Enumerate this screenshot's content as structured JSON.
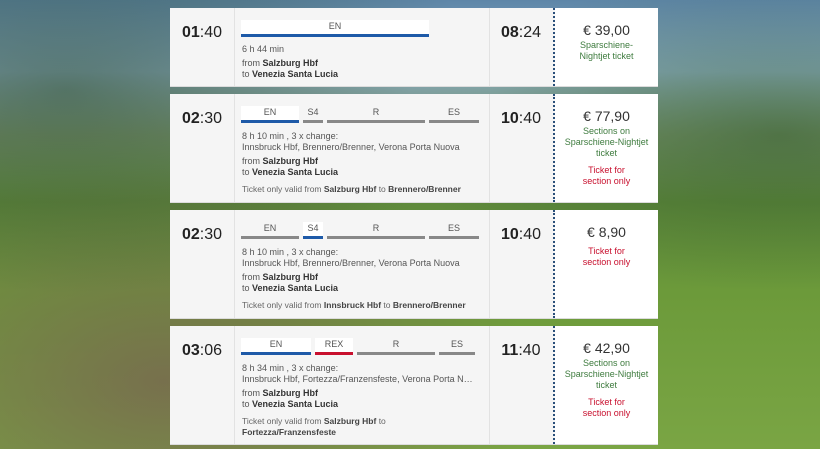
{
  "connections": [
    {
      "dep_h": "01",
      "dep_m": "40",
      "arr_h": "08",
      "arr_m": "24",
      "legs": [
        {
          "label": "EN",
          "color": "blue"
        }
      ],
      "duration": "6 h 44 min",
      "changes": "",
      "via": "",
      "from_label": "from",
      "from": "Salzburg Hbf",
      "to_label": "to",
      "to": "Venezia Santa Lucia",
      "validity": null,
      "price": "€ 39,00",
      "price_note": "Sparschiene-Nightjet ticket",
      "price_warning": ""
    },
    {
      "dep_h": "02",
      "dep_m": "30",
      "arr_h": "10",
      "arr_m": "40",
      "legs": [
        {
          "label": "EN",
          "color": "blue"
        },
        {
          "label": "S4",
          "color": "grey"
        },
        {
          "label": "R",
          "color": "grey"
        },
        {
          "label": "ES",
          "color": "grey"
        }
      ],
      "duration": "8 h 10 min",
      "changes": ", 3 x change:",
      "via": "Innsbruck Hbf, Brennero/Brenner, Verona Porta Nuova",
      "from_label": "from",
      "from": "Salzburg Hbf",
      "to_label": "to",
      "to": "Venezia Santa Lucia",
      "validity": {
        "prefix": "Ticket only valid from",
        "from": "Salzburg Hbf",
        "mid": "to",
        "to": "Brennero/Brenner"
      },
      "price": "€ 77,90",
      "price_note": "Sections on Sparschiene-Nightjet ticket",
      "price_warning": "Ticket for section only"
    },
    {
      "dep_h": "02",
      "dep_m": "30",
      "arr_h": "10",
      "arr_m": "40",
      "legs": [
        {
          "label": "EN",
          "color": "grey"
        },
        {
          "label": "S4",
          "color": "blue"
        },
        {
          "label": "R",
          "color": "grey"
        },
        {
          "label": "ES",
          "color": "grey"
        }
      ],
      "duration": "8 h 10 min",
      "changes": ", 3 x change:",
      "via": "Innsbruck Hbf, Brennero/Brenner, Verona Porta Nuova",
      "from_label": "from",
      "from": "Salzburg Hbf",
      "to_label": "to",
      "to": "Venezia Santa Lucia",
      "validity": {
        "prefix": "Ticket only valid from",
        "from": "Innsbruck Hbf",
        "mid": "to",
        "to": "Brennero/Brenner"
      },
      "price": "€ 8,90",
      "price_note": "",
      "price_warning": "Ticket for section only"
    },
    {
      "dep_h": "03",
      "dep_m": "06",
      "arr_h": "11",
      "arr_m": "40",
      "legs": [
        {
          "label": "EN",
          "color": "blue"
        },
        {
          "label": "REX",
          "color": "red"
        },
        {
          "label": "R",
          "color": "grey"
        },
        {
          "label": "ES",
          "color": "grey"
        }
      ],
      "duration": "8 h 34 min",
      "changes": ", 3 x change:",
      "via": "Innsbruck Hbf, Fortezza/Franzensfeste, Verona Porta N…",
      "from_label": "from",
      "from": "Salzburg Hbf",
      "to_label": "to",
      "to": "Venezia Santa Lucia",
      "validity": {
        "prefix": "Ticket only valid from",
        "from": "Salzburg Hbf",
        "mid": "to",
        "to": "Fortezza/Franzensfeste"
      },
      "price": "€ 42,90",
      "price_note": "Sections on Sparschiene-Nightjet ticket",
      "price_warning": "Ticket for section only"
    }
  ]
}
